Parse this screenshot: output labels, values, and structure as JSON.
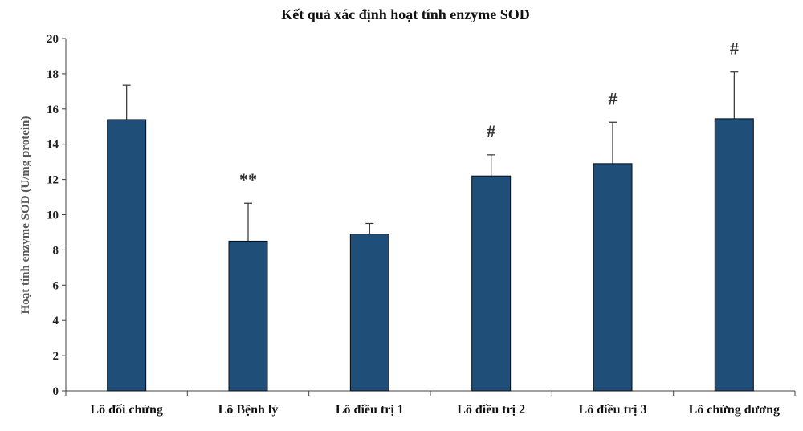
{
  "chart_data": {
    "type": "bar",
    "title": "Kết quả xác định hoạt tính enzyme SOD",
    "xlabel": "",
    "ylabel": "Hoạt tính enzyme SOD (U/mg protein)",
    "ylim": [
      0,
      20
    ],
    "yticks": [
      0,
      2,
      4,
      6,
      8,
      10,
      12,
      14,
      16,
      18,
      20
    ],
    "categories": [
      "Lô đối chứng",
      "Lô Bệnh lý",
      "Lô điều trị 1",
      "Lô điều trị 2",
      "Lô điều trị 3",
      "Lô chứng dương"
    ],
    "values": [
      15.4,
      8.5,
      8.9,
      12.2,
      12.9,
      15.45
    ],
    "errors": [
      1.95,
      2.15,
      0.6,
      1.2,
      2.35,
      2.65
    ],
    "annotations": [
      "",
      "**",
      "",
      "#",
      "#",
      "#"
    ],
    "grid": false,
    "legend": "none",
    "bar_color": "#1f4e79",
    "bar_edge_color": "#0d0d0d",
    "axis_color": "#404040"
  }
}
